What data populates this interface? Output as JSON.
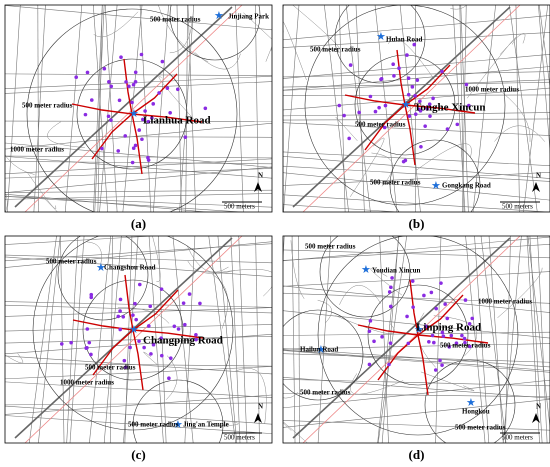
{
  "panels": [
    {
      "caption": "(a)",
      "labels": [
        "500 meter radius",
        "Jinjiang Park",
        "500 meter radius",
        "Lianhua Road",
        "1000 meter radius"
      ],
      "north": "N",
      "scale": "500 meters"
    },
    {
      "caption": "(b)",
      "labels": [
        "500 meter radius",
        "Hulan Road",
        "1000 meter radius",
        "Tonghe Xincun",
        "500 meter radius",
        "500 meter radius",
        "Gongkang Road"
      ],
      "north": "N",
      "scale": "500 meters"
    },
    {
      "caption": "(c)",
      "labels": [
        "500 meter radius",
        "Changshou Road",
        "Changping Road",
        "500 meter radius",
        "1000 meter radius",
        "500 meter radius",
        "Jing'an Temple"
      ],
      "north": "N",
      "scale": "500 meters"
    },
    {
      "caption": "(d)",
      "labels": [
        "500 meter radius",
        "Youdian Xincun",
        "1000 meter radius",
        "Linping Road",
        "Hailun Road",
        "500 meter radius",
        "500 meter radius",
        "Hongkou",
        "500 meter radius"
      ],
      "north": "N",
      "scale": "500 meters"
    }
  ]
}
